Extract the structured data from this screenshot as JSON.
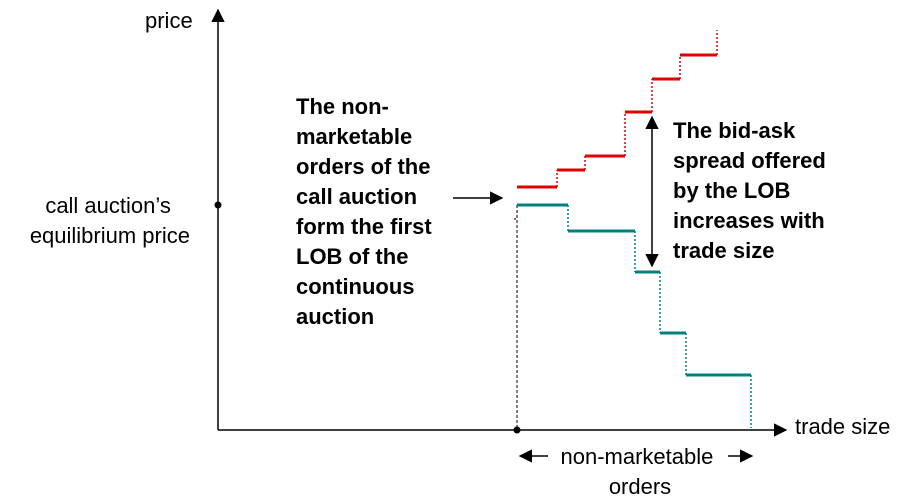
{
  "axes": {
    "y_label": "price",
    "x_label": "trade size"
  },
  "equilibrium_label": [
    "call auction’s",
    "equilibrium price"
  ],
  "annotation_left": [
    "The non-",
    "marketable",
    "orders of the",
    "call auction",
    "form the first",
    "LOB of the",
    "continuous",
    "auction"
  ],
  "annotation_right": [
    "The bid-ask",
    "spread offered",
    "by the LOB",
    "increases with",
    "trade size"
  ],
  "bottom_label": [
    "non-marketable",
    "orders"
  ],
  "colors": {
    "ask": "#e00000",
    "bid": "#008080",
    "axis": "#000000"
  }
}
